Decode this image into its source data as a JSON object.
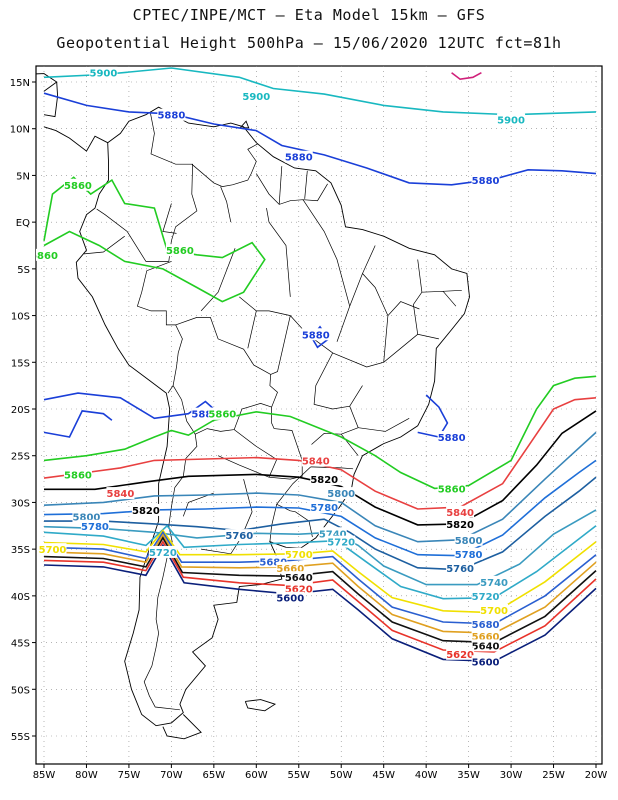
{
  "title_line1": "CPTEC/INPE/MCT –  Eta Model 15km – GFS",
  "title_line2": "Geopotential Height 500hPa – 15/06/2020 12UTC fct=81h",
  "lon_ticks": [
    "85W",
    "80W",
    "75W",
    "70W",
    "65W",
    "60W",
    "55W",
    "50W",
    "45W",
    "40W",
    "35W",
    "30W",
    "25W",
    "20W"
  ],
  "lat_ticks": [
    "15N",
    "10N",
    "5N",
    "EQ",
    "5S",
    "10S",
    "15S",
    "20S",
    "25S",
    "30S",
    "35S",
    "40S",
    "45S",
    "50S",
    "55S"
  ],
  "colors": {
    "c5600": "#0a1f7a",
    "c5620": "#e8332a",
    "c5640": "#111111",
    "c5660": "#e0a020",
    "c5680": "#2a5fd0",
    "c5700": "#f0e000",
    "c5720": "#2faac8",
    "c5740": "#3a9bc0",
    "c5760": "#1d5fa0",
    "c5780": "#1f6fd8",
    "c5800": "#3a86b8",
    "c5820": "#000000",
    "c5840": "#e84040",
    "c5860": "#22cc22",
    "c5880": "#1a3fd8",
    "c5900": "#18b8c0",
    "coast": "#000000",
    "grid": "#888888",
    "magenta": "#d0207a"
  },
  "contours": [
    {
      "value": "5900",
      "color_key": "c5900",
      "label": "5900",
      "label_pos": [
        [
          -60,
          13.5
        ],
        [
          -30,
          11.0
        ],
        [
          -78,
          16.0
        ]
      ]
    },
    {
      "value": "5880",
      "color_key": "c5880",
      "label": "5880",
      "label_pos": [
        [
          -70,
          11.5
        ],
        [
          -55,
          7.0
        ],
        [
          -33,
          4.5
        ],
        [
          -53,
          -12
        ],
        [
          -66,
          -20.5
        ],
        [
          -37,
          -23
        ]
      ]
    },
    {
      "value": "5860",
      "color_key": "c5860",
      "label": "5860",
      "label_pos": [
        [
          -81,
          4.0
        ],
        [
          -85,
          -3.5
        ],
        [
          -69,
          -3.0
        ],
        [
          -64,
          -20.5
        ],
        [
          -81,
          -27
        ],
        [
          -37,
          -28.5
        ]
      ]
    },
    {
      "value": "5840",
      "color_key": "c5840",
      "label": "5840",
      "label_pos": [
        [
          -53,
          -25.5
        ],
        [
          -76,
          -29
        ],
        [
          -36,
          -31
        ]
      ]
    },
    {
      "value": "5820",
      "color_key": "c5820",
      "label": "5820",
      "label_pos": [
        [
          -52,
          -27.5
        ],
        [
          -73,
          -30.8
        ],
        [
          -36,
          -32.3
        ]
      ]
    },
    {
      "value": "5800",
      "color_key": "c5800",
      "label": "5800",
      "label_pos": [
        [
          -50,
          -29
        ],
        [
          -80,
          -31.5
        ],
        [
          -35,
          -34
        ]
      ]
    },
    {
      "value": "5780",
      "color_key": "c5780",
      "label": "5780",
      "label_pos": [
        [
          -52,
          -30.5
        ],
        [
          -79,
          -32.5
        ],
        [
          -35,
          -35.5
        ]
      ]
    },
    {
      "value": "5760",
      "color_key": "c5760",
      "label": "5760",
      "label_pos": [
        [
          -62,
          -33.5
        ],
        [
          -36,
          -37
        ]
      ]
    },
    {
      "value": "5740",
      "color_key": "c5740",
      "label": "5740",
      "label_pos": [
        [
          -51,
          -33.3
        ],
        [
          -32,
          -38.5
        ]
      ]
    },
    {
      "value": "5720",
      "color_key": "c5720",
      "label": "5720",
      "label_pos": [
        [
          -71,
          -35.3
        ],
        [
          -50,
          -34.2
        ],
        [
          -33,
          -40
        ]
      ]
    },
    {
      "value": "5700",
      "color_key": "c5700",
      "label": "5700",
      "label_pos": [
        [
          -84,
          -35
        ],
        [
          -55,
          -35.5
        ],
        [
          -32,
          -41.5
        ]
      ]
    },
    {
      "value": "5680",
      "color_key": "c5680",
      "label": "5680",
      "label_pos": [
        [
          -58,
          -36.3
        ],
        [
          -33,
          -43
        ]
      ]
    },
    {
      "value": "5660",
      "color_key": "c5660",
      "label": "5660",
      "label_pos": [
        [
          -56,
          -37
        ],
        [
          -33,
          -44.3
        ]
      ]
    },
    {
      "value": "5640",
      "color_key": "c5640",
      "label": "5640",
      "label_pos": [
        [
          -55,
          -38
        ],
        [
          -33,
          -45.3
        ]
      ]
    },
    {
      "value": "5620",
      "color_key": "c5620",
      "label": "5620",
      "label_pos": [
        [
          -55,
          -39.2
        ],
        [
          -36,
          -46.2
        ]
      ]
    },
    {
      "value": "5600",
      "color_key": "c5600",
      "label": "5600",
      "label_pos": [
        [
          -56,
          -40.2
        ],
        [
          -33,
          -47
        ]
      ]
    }
  ]
}
